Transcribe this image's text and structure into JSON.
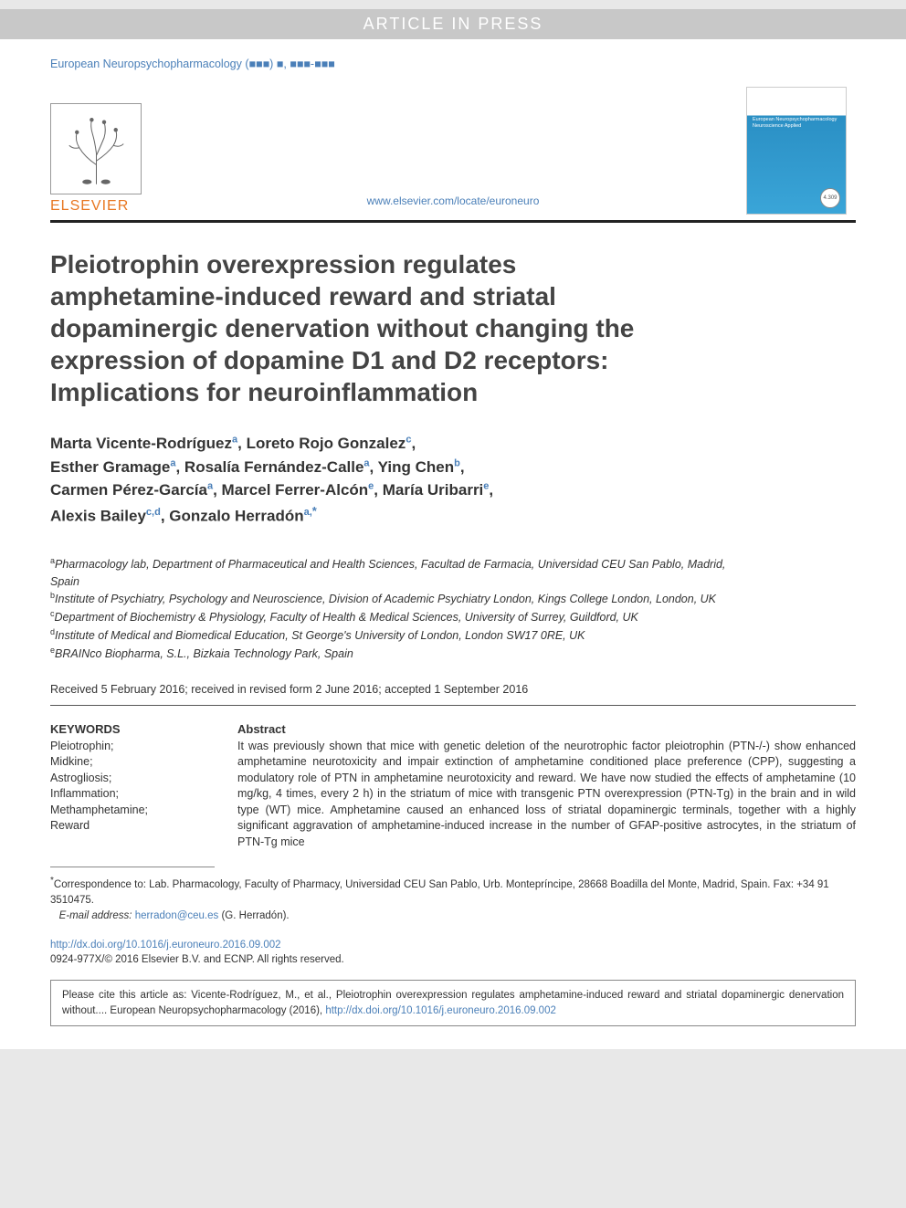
{
  "press_banner": "ARTICLE IN PRESS",
  "journal_ref": "European Neuropsychopharmacology (■■■) ■, ■■■-■■■",
  "elsevier_text": "ELSEVIER",
  "center_link": "www.elsevier.com/locate/euroneuro",
  "cover_title": "European Neuropsychopharmacology Neuroscience Applied",
  "cover_badge": "4.309",
  "title": "Pleiotrophin overexpression regulates amphetamine-induced reward and striatal dopaminergic denervation without changing the expression of dopamine D1 and D2 receptors: Implications for neuroinflammation",
  "authors": [
    {
      "name": "Marta Vicente-Rodríguez",
      "sup": "a"
    },
    {
      "name": "Loreto Rojo Gonzalez",
      "sup": "c"
    },
    {
      "name": "Esther Gramage",
      "sup": "a"
    },
    {
      "name": "Rosalía Fernández-Calle",
      "sup": "a"
    },
    {
      "name": "Ying Chen",
      "sup": "b"
    },
    {
      "name": "Carmen Pérez-García",
      "sup": "a"
    },
    {
      "name": "Marcel Ferrer-Alcón",
      "sup": "e"
    },
    {
      "name": "María Uribarri",
      "sup": "e"
    },
    {
      "name": "Alexis Bailey",
      "sup": "c,d"
    },
    {
      "name": "Gonzalo Herradón",
      "sup": "a,",
      "star": true
    }
  ],
  "affiliations": {
    "a": "Pharmacology lab, Department of Pharmaceutical and Health Sciences, Facultad de Farmacia, Universidad CEU San Pablo, Madrid, Spain",
    "b": "Institute of Psychiatry, Psychology and Neuroscience, Division of Academic Psychiatry London, Kings College London, London, UK",
    "c": "Department of Biochemistry & Physiology, Faculty of Health & Medical Sciences, University of Surrey, Guildford, UK",
    "d": "Institute of Medical and Biomedical Education, St George's University of London, London SW17 0RE, UK",
    "e": "BRAINco Biopharma, S.L., Bizkaia Technology Park, Spain"
  },
  "dates": "Received 5 February 2016; received in revised form 2 June 2016; accepted 1 September 2016",
  "keywords_head": "KEYWORDS",
  "keywords": "Pleiotrophin;\nMidkine;\nAstrogliosis;\nInflammation;\nMethamphetamine;\nReward",
  "abstract_head": "Abstract",
  "abstract_text": "It was previously shown that mice with genetic deletion of the neurotrophic factor pleiotrophin (PTN-/-) show enhanced amphetamine neurotoxicity and impair extinction of amphetamine conditioned place preference (CPP), suggesting a modulatory role of PTN in amphetamine neurotoxicity and reward. We have now studied the effects of amphetamine (10 mg/kg, 4 times, every 2 h) in the striatum of mice with transgenic PTN overexpression (PTN-Tg) in the brain and in wild type (WT) mice. Amphetamine caused an enhanced loss of striatal dopaminergic terminals, together with a highly significant aggravation of amphetamine-induced increase in the number of GFAP-positive astrocytes, in the striatum of PTN-Tg mice",
  "correspondence": "Correspondence to: Lab. Pharmacology, Faculty of Pharmacy, Universidad CEU San Pablo, Urb. Montepríncipe, 28668 Boadilla del Monte, Madrid, Spain. Fax: +34 91 3510475.",
  "email_label": "E-mail address: ",
  "email": "herradon@ceu.es",
  "email_suffix": " (G. Herradón).",
  "doi": "http://dx.doi.org/10.1016/j.euroneuro.2016.09.002",
  "copyright": "0924-977X/© 2016 Elsevier B.V. and ECNP. All rights reserved.",
  "cite_box_prefix": "Please cite this article as: Vicente-Rodríguez, M., et al., Pleiotrophin overexpression regulates amphetamine-induced reward and striatal dopaminergic denervation without.... European Neuropsychopharmacology (2016), ",
  "cite_box_link": "http://dx.doi.org/10.1016/j.euroneuro.2016.09.002",
  "colors": {
    "link": "#4a7fb8",
    "elsevier": "#e87722",
    "text": "#333333",
    "title": "#444444",
    "banner_bg": "#c8c8c8",
    "hr": "#222222"
  },
  "typography": {
    "title_fontsize": 28,
    "authors_fontsize": 17,
    "body_fontsize": 12.5,
    "footnote_fontsize": 11.5
  }
}
